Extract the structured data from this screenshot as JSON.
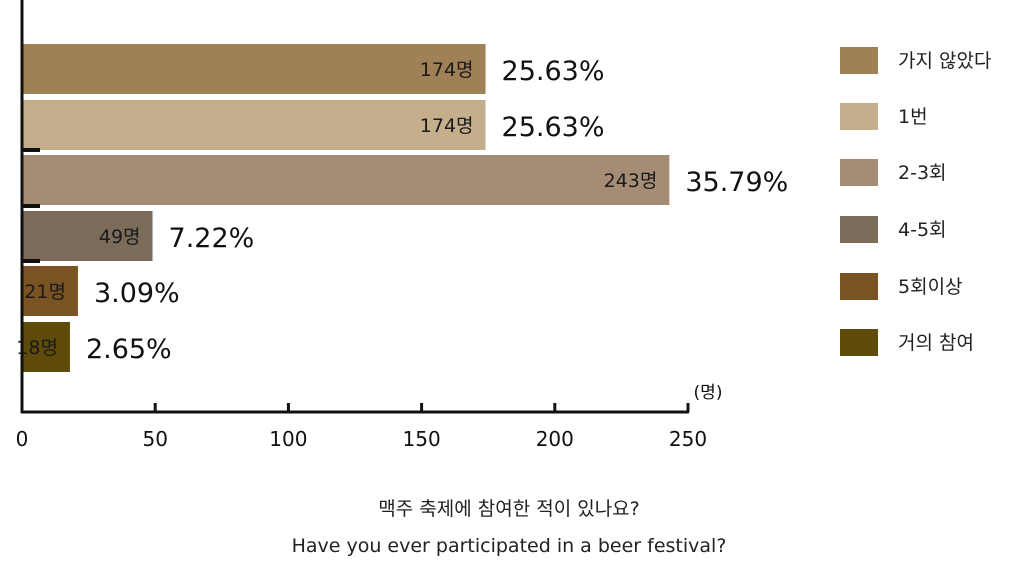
{
  "chart_data": {
    "type": "bar",
    "orientation": "horizontal",
    "categories": [
      "가지 않았다",
      "1번",
      "2-3회",
      "4-5회",
      "5회이상",
      "거의 참여"
    ],
    "values": [
      174,
      174,
      243,
      49,
      21,
      18
    ],
    "value_labels": [
      "174명",
      "174명",
      "243명",
      "49명",
      "21명",
      "18명"
    ],
    "percent_labels": [
      "25.63%",
      "25.63%",
      "35.79%",
      "7.22%",
      "3.09%",
      "2.65%"
    ],
    "colors": [
      "#a08056",
      "#c4ae8c",
      "#a58c74",
      "#7b6c5a",
      "#7a5322",
      "#5e4a0a"
    ],
    "xlim": [
      0,
      250
    ],
    "xticks": [
      "0",
      "50",
      "100",
      "150",
      "200",
      "250"
    ],
    "xunit": "(명)",
    "grid": false,
    "legend_position": "right"
  },
  "caption": {
    "korean": "맥주 축제에 참여한 적이 있나요?",
    "english": "Have you ever participated in a beer festival?"
  }
}
